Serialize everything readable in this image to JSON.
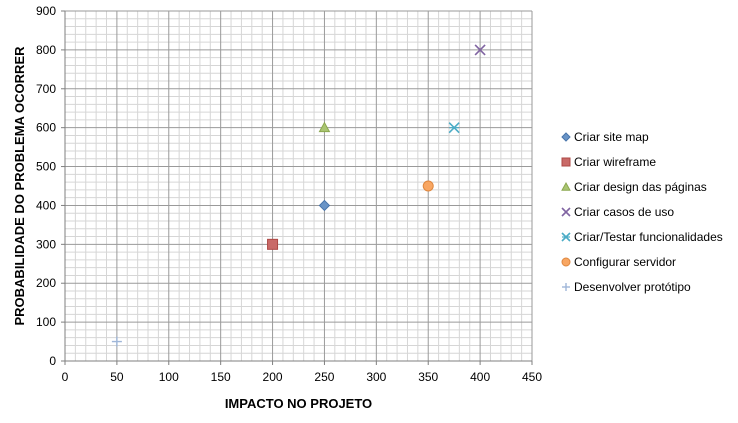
{
  "chart_data": {
    "type": "scatter",
    "title": "",
    "xlabel": "IMPACTO NO PROJETO",
    "ylabel": "PROBABILIDADE DO PROBLEMA OCORRER",
    "xlim": [
      0,
      450
    ],
    "ylim": [
      0,
      900
    ],
    "x_major_step": 50,
    "y_major_step": 100,
    "x_minor_step": 10,
    "y_minor_step": 20,
    "grid": true,
    "legend_position": "right",
    "x_ticks": [
      "0",
      "50",
      "100",
      "150",
      "200",
      "250",
      "300",
      "350",
      "400",
      "450"
    ],
    "y_ticks": [
      "0",
      "100",
      "200",
      "300",
      "400",
      "500",
      "600",
      "700",
      "800",
      "900"
    ],
    "series": [
      {
        "name": "Criar site map",
        "marker": "diamond",
        "color": "#4f81bd",
        "points": [
          {
            "x": 250,
            "y": 400
          }
        ]
      },
      {
        "name": "Criar wireframe",
        "marker": "square",
        "color": "#c0504d",
        "points": [
          {
            "x": 200,
            "y": 300
          }
        ]
      },
      {
        "name": "Criar design das páginas",
        "marker": "triangle",
        "color": "#9bbb59",
        "points": [
          {
            "x": 250,
            "y": 600
          }
        ]
      },
      {
        "name": "Criar casos de uso",
        "marker": "x",
        "color": "#8064a2",
        "points": [
          {
            "x": 400,
            "y": 800
          }
        ]
      },
      {
        "name": "Criar/Testar funcionalidades",
        "marker": "star",
        "color": "#4bacc6",
        "points": [
          {
            "x": 375,
            "y": 600
          }
        ]
      },
      {
        "name": "Configurar servidor",
        "marker": "circle",
        "color": "#f79646",
        "points": [
          {
            "x": 350,
            "y": 450
          }
        ]
      },
      {
        "name": "Desenvolver protótipo",
        "marker": "plus",
        "color": "#9fb6d8",
        "points": [
          {
            "x": 50,
            "y": 50
          }
        ]
      }
    ]
  }
}
